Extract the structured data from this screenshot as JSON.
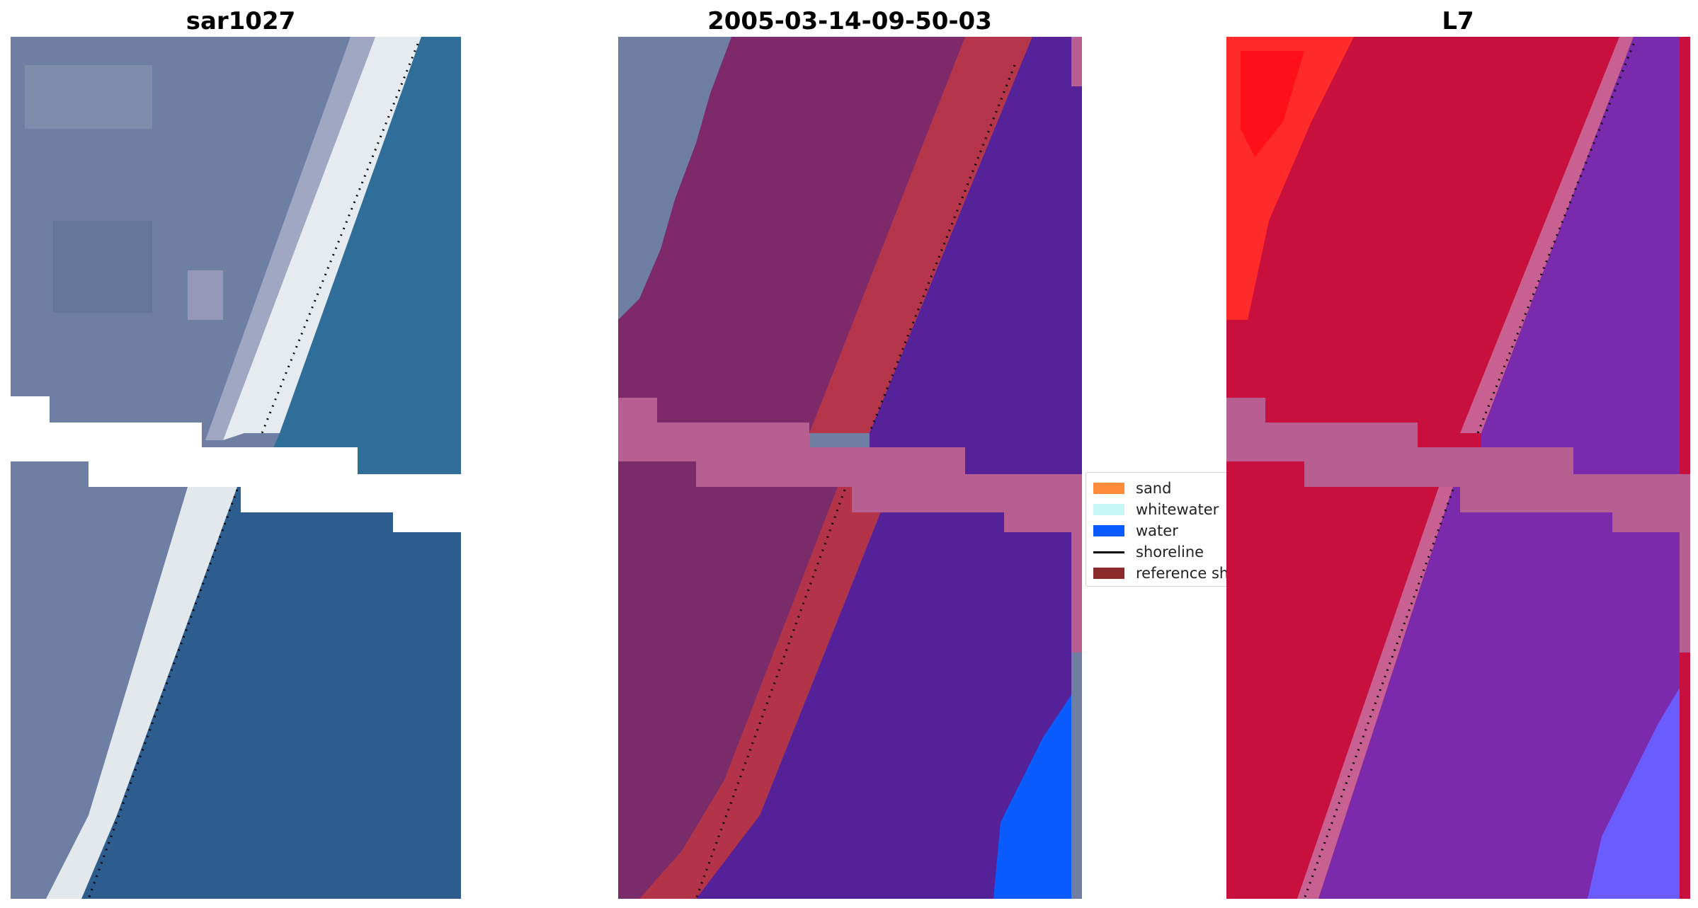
{
  "panels": [
    {
      "title": "sar1027"
    },
    {
      "title": "2005-03-14-09-50-03"
    },
    {
      "title": "L7"
    }
  ],
  "legend": {
    "items": [
      {
        "label": "sand",
        "kind": "patch",
        "color": "#ff8c3a"
      },
      {
        "label": "whitewater",
        "kind": "patch",
        "color": "#c8f7f7"
      },
      {
        "label": "water",
        "kind": "patch",
        "color": "#0a5cff"
      },
      {
        "label": "shoreline",
        "kind": "line",
        "color": "#000000"
      },
      {
        "label": "reference shoreline",
        "kind": "patch",
        "color": "#8b2a2a"
      }
    ]
  },
  "colors": {
    "rgb_land": "#6f7fa4",
    "rgb_beach": "#e8ecef",
    "rgb_water": "#2e6e98",
    "class_land": "#7e2a6a",
    "class_sand": "#b5354a",
    "class_water": "#56229a",
    "class_water_bright": "#0a5cff",
    "class_nodata": "#b85f92",
    "index_land": "#c8103f",
    "index_land_bright": "#ff2a2a",
    "index_water": "#7a2aad",
    "index_water_bright": "#6a5cff",
    "index_nodata": "#b85f92"
  }
}
